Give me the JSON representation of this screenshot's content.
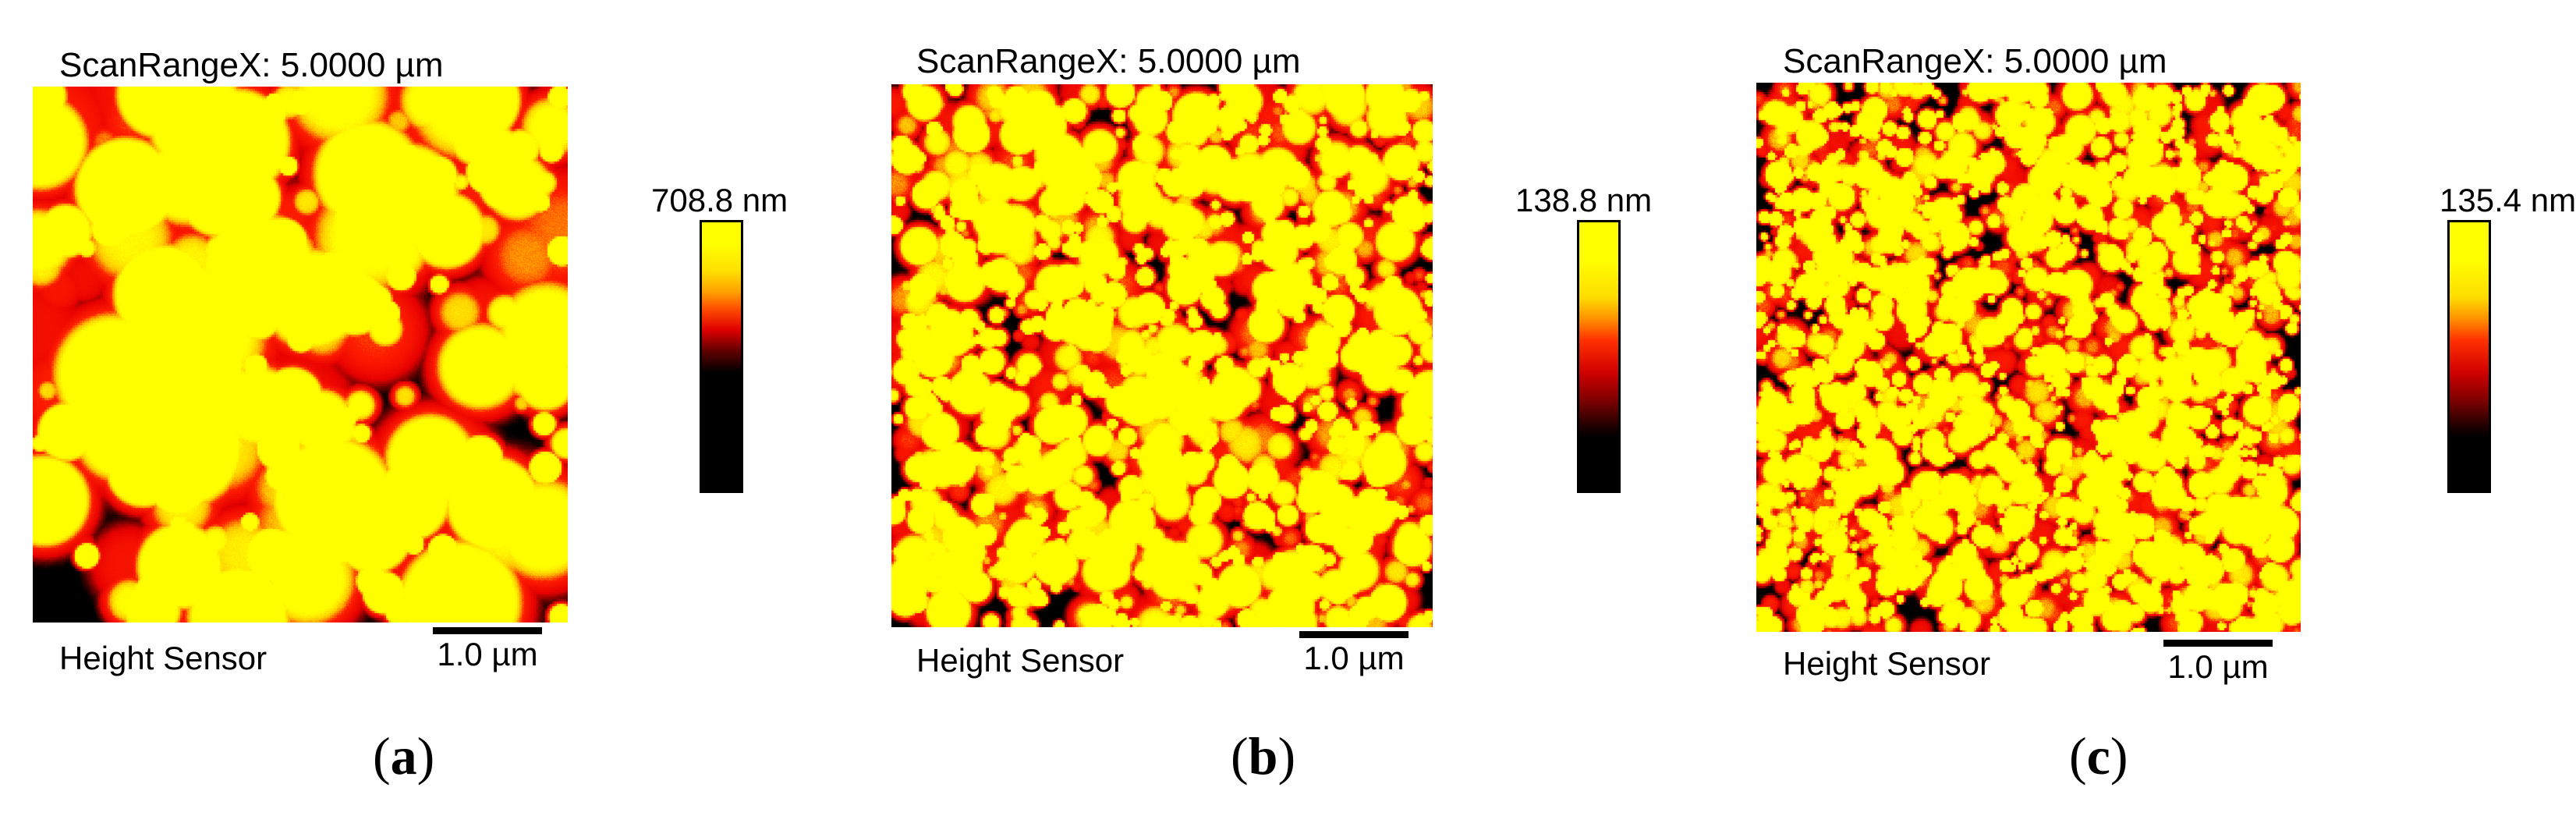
{
  "panels": [
    {
      "scan_label": "ScanRangeX: 5.0000 µm",
      "sensor_label": "Height Sensor",
      "scalebar_label": "1.0 µm",
      "colorbar_max": "708.8 nm",
      "caption_open": "(",
      "caption_letter": "a",
      "caption_close": ")",
      "texture": "coarse large grains"
    },
    {
      "scan_label": "ScanRangeX: 5.0000 µm",
      "sensor_label": "Height Sensor",
      "scalebar_label": "1.0 µm",
      "colorbar_max": "138.8 nm",
      "caption_open": "(",
      "caption_letter": "b",
      "caption_close": ")",
      "texture": "medium fine grains"
    },
    {
      "scan_label": "ScanRangeX: 5.0000 µm",
      "sensor_label": "Height Sensor",
      "scalebar_label": "1.0 µm",
      "colorbar_max": "135.4 nm",
      "caption_open": "(",
      "caption_letter": "c",
      "caption_close": ")",
      "texture": "very fine grains"
    }
  ],
  "colors": {
    "high": "#ffff00",
    "mid": "#ff2000",
    "low": "#000000"
  }
}
